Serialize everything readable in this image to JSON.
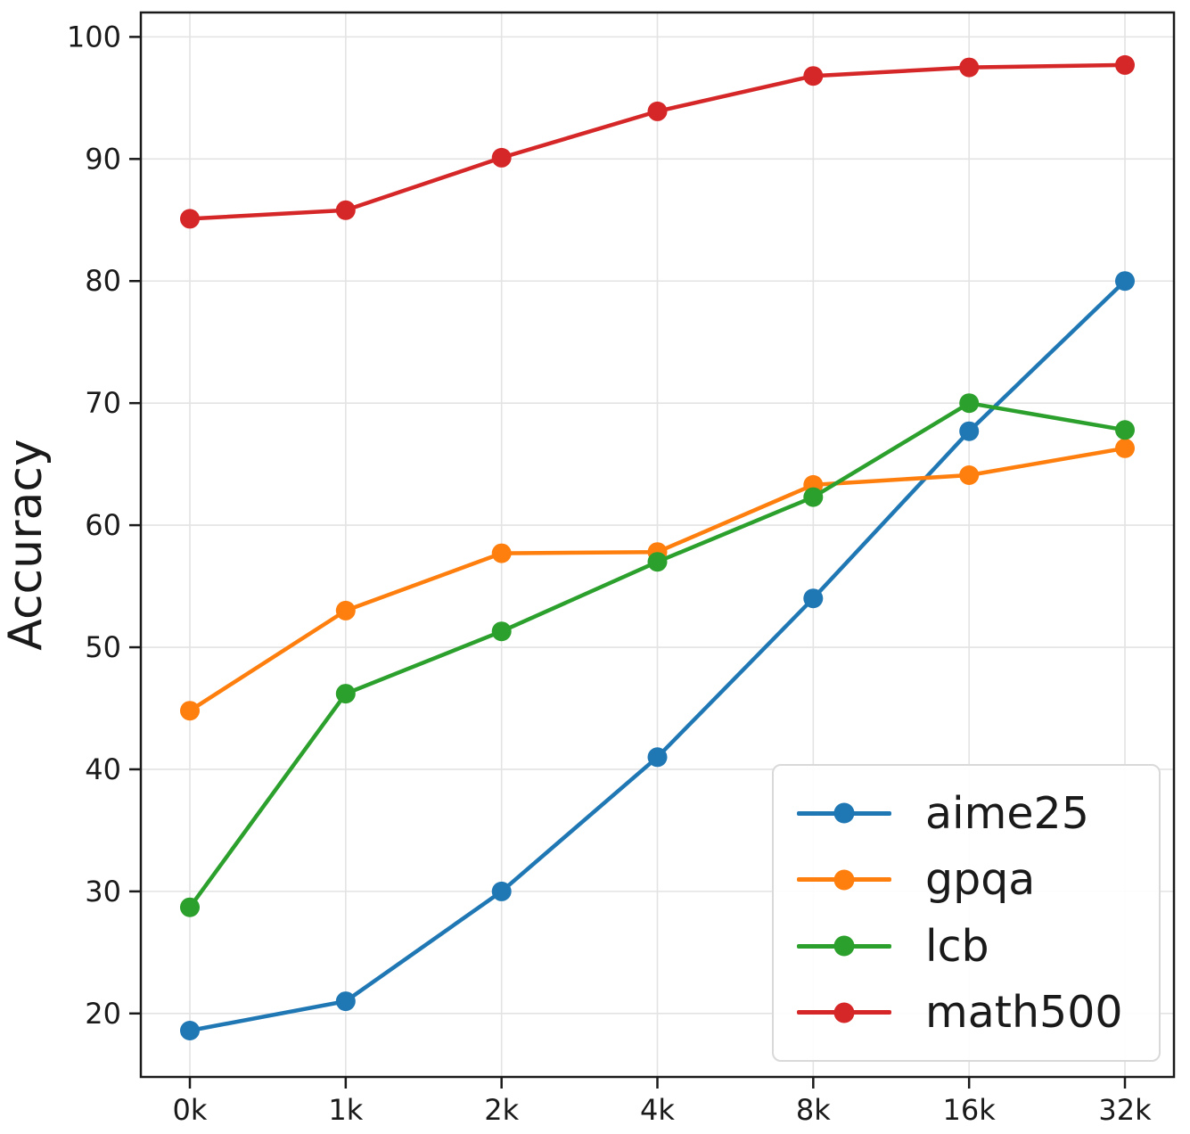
{
  "chart_data": {
    "type": "line",
    "title": "",
    "xlabel": "",
    "ylabel": "Accuracy",
    "categories": [
      "0k",
      "1k",
      "2k",
      "4k",
      "8k",
      "16k",
      "32k"
    ],
    "y_ticks": [
      20,
      30,
      40,
      50,
      60,
      70,
      80,
      90,
      100
    ],
    "ylim": [
      14.8,
      102
    ],
    "grid": true,
    "legend_position": "lower right",
    "marker": "circle",
    "series": [
      {
        "name": "aime25",
        "color": "#1f77b4",
        "values": [
          18.6,
          21.0,
          30.0,
          41.0,
          54.0,
          67.7,
          80.0
        ]
      },
      {
        "name": "gpqa",
        "color": "#ff7f0e",
        "values": [
          44.8,
          53.0,
          57.7,
          57.8,
          63.3,
          64.1,
          66.3
        ]
      },
      {
        "name": "lcb",
        "color": "#2ca02c",
        "values": [
          28.7,
          46.2,
          51.3,
          57.0,
          62.3,
          70.0,
          67.8
        ]
      },
      {
        "name": "math500",
        "color": "#d62728",
        "values": [
          85.1,
          85.8,
          90.1,
          93.9,
          96.8,
          97.5,
          97.7
        ]
      }
    ]
  }
}
